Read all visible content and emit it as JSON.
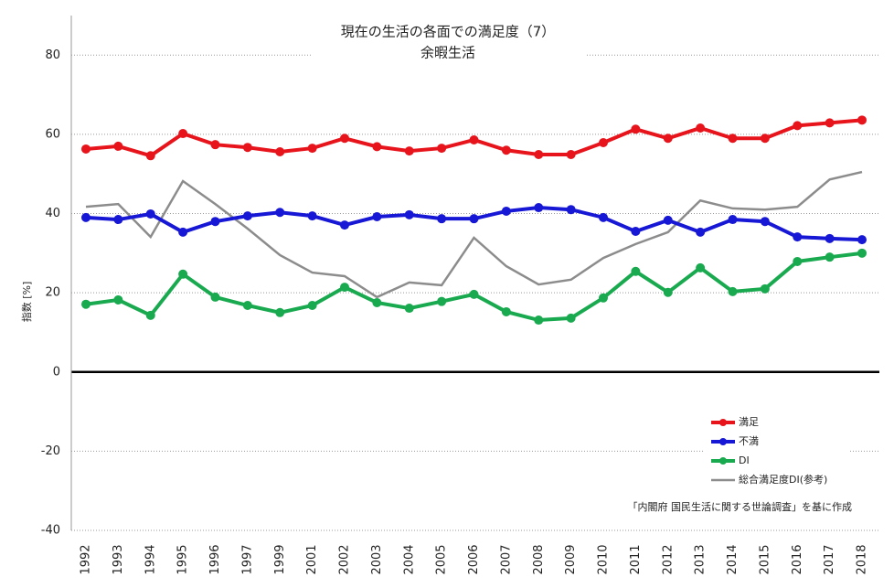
{
  "chart_data": {
    "type": "line",
    "title": "現在の生活の各面での満足度（7）",
    "subtitle": "余暇生活",
    "y_label": "指数 [%]",
    "source": "「内閣府 国民生活に関する世論調査」を基に作成",
    "categories": [
      "1992",
      "1993",
      "1994",
      "1995",
      "1996",
      "1997",
      "1999",
      "2001",
      "2002",
      "2003",
      "2004",
      "2005",
      "2006",
      "2007",
      "2008",
      "2009",
      "2010",
      "2011",
      "2012",
      "2013",
      "2014",
      "2015",
      "2016",
      "2017",
      "2018"
    ],
    "series": [
      {
        "name": "満足",
        "color": "#e8141c",
        "markers": true,
        "values": [
          56.3,
          57.0,
          54.6,
          60.2,
          57.4,
          56.7,
          55.6,
          56.5,
          59.0,
          56.9,
          55.8,
          56.5,
          58.6,
          56.0,
          54.9,
          54.9,
          57.9,
          61.3,
          59.0,
          61.6,
          59.0,
          59.0,
          62.2,
          62.9,
          63.6
        ]
      },
      {
        "name": "不満",
        "color": "#1717d6",
        "markers": true,
        "values": [
          39.0,
          38.5,
          39.9,
          35.3,
          38.0,
          39.4,
          40.3,
          39.4,
          37.1,
          39.2,
          39.7,
          38.7,
          38.7,
          40.6,
          41.5,
          41.0,
          39.0,
          35.5,
          38.3,
          35.3,
          38.5,
          38.0,
          34.1,
          33.7,
          33.4
        ]
      },
      {
        "name": "DI",
        "color": "#19a94f",
        "markers": true,
        "values": [
          17.1,
          18.2,
          14.3,
          24.7,
          18.9,
          16.8,
          15.0,
          16.8,
          21.4,
          17.5,
          16.1,
          17.8,
          19.6,
          15.2,
          13.1,
          13.6,
          18.7,
          25.4,
          20.1,
          26.3,
          20.3,
          21.0,
          27.9,
          29.0,
          30.0
        ]
      },
      {
        "name": "総合満足度DI(参考)",
        "color": "#8c8c8c",
        "markers": false,
        "values": [
          41.7,
          42.4,
          34.1,
          48.2,
          42.4,
          36.2,
          29.5,
          25.1,
          24.2,
          18.9,
          22.6,
          21.9,
          33.9,
          26.7,
          22.1,
          23.3,
          28.8,
          32.3,
          35.3,
          43.3,
          41.3,
          41.0,
          41.7,
          48.6,
          50.5
        ]
      }
    ],
    "ylim": [
      -40,
      90
    ],
    "yticks": [
      -40,
      -20,
      0,
      20,
      40,
      60,
      80
    ],
    "grid": true
  }
}
